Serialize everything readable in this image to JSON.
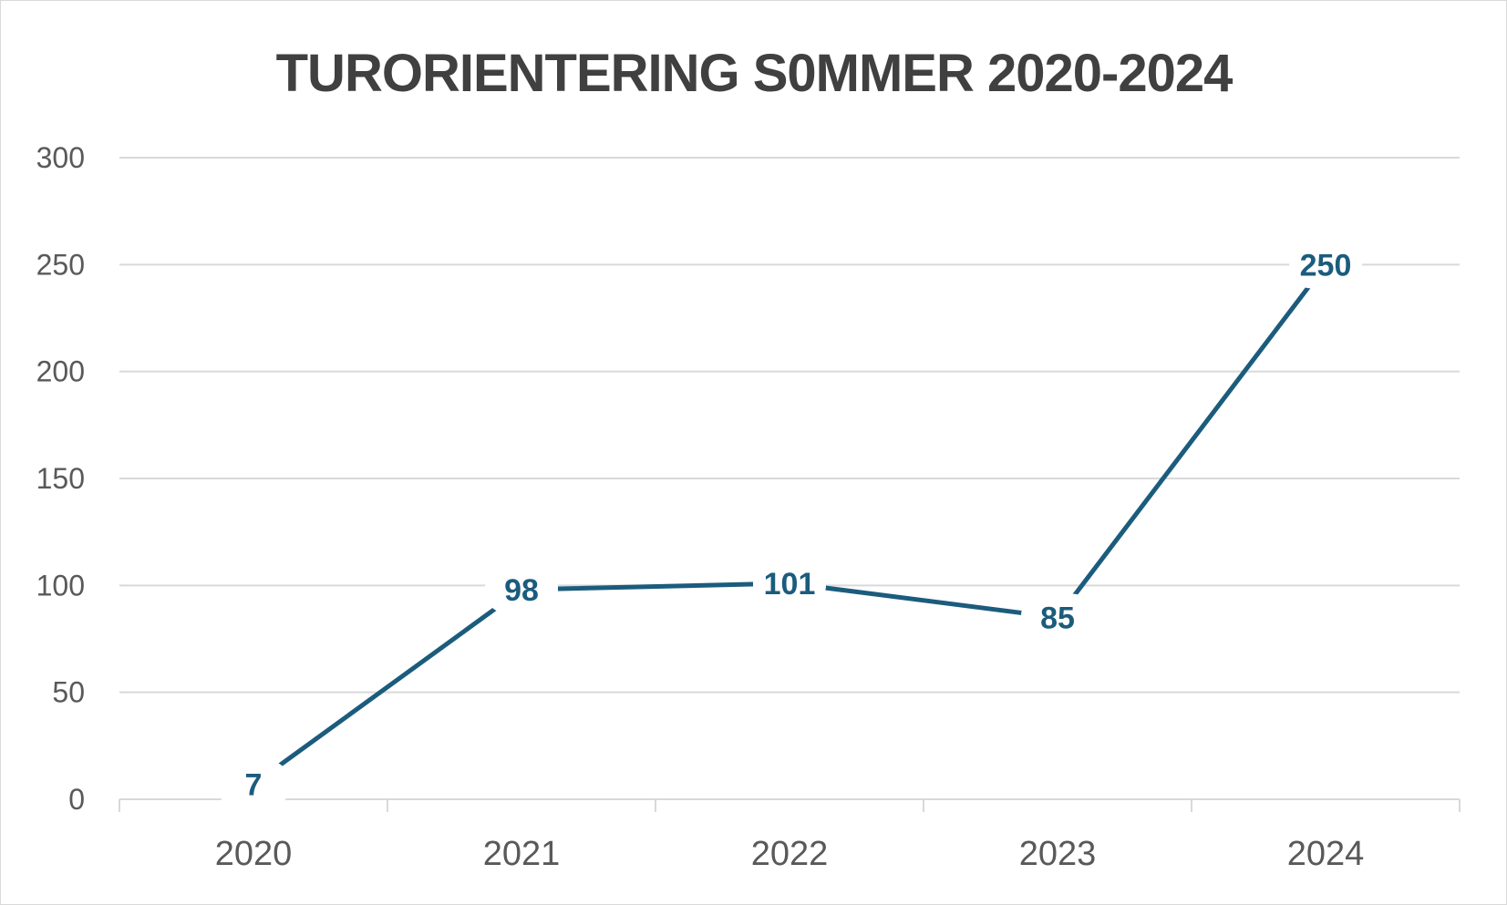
{
  "chart_data": {
    "type": "line",
    "title": "TURORIENTERING S0MMER 2020-2024",
    "categories": [
      "2020",
      "2021",
      "2022",
      "2023",
      "2024"
    ],
    "series": [
      {
        "values": [
          7,
          98,
          101,
          85,
          250
        ],
        "color": "#1b5c7d"
      }
    ],
    "data_labels": [
      "7",
      "98",
      "101",
      "85",
      "250"
    ],
    "yticks": [
      "0",
      "50",
      "100",
      "150",
      "200",
      "250",
      "300"
    ],
    "ylim": [
      0,
      300
    ],
    "grid": true,
    "legend": "none"
  }
}
